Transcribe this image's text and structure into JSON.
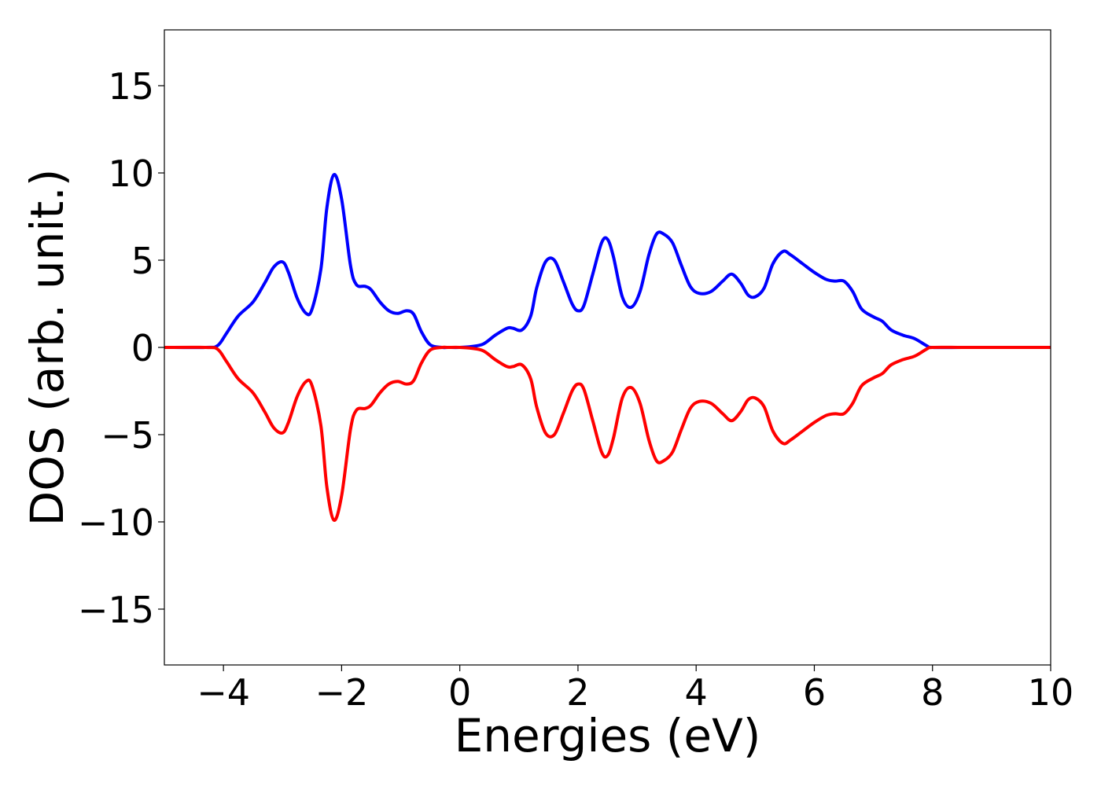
{
  "chart_data": {
    "type": "line",
    "title": "",
    "xlabel": "Energies (eV)",
    "ylabel": "DOS (arb. unit.)",
    "xlim": [
      -5,
      10
    ],
    "ylim": [
      -18.2,
      18.2
    ],
    "xticks": [
      -4,
      -2,
      0,
      2,
      4,
      6,
      8,
      10
    ],
    "xtick_labels": [
      "−4",
      "−2",
      "0",
      "2",
      "4",
      "6",
      "8",
      "10"
    ],
    "yticks": [
      15,
      10,
      5,
      0,
      -5,
      -10,
      -15
    ],
    "ytick_labels": [
      "15",
      "10",
      "5",
      "0",
      "−5",
      "−10",
      "−15"
    ],
    "grid": false,
    "legend": "none",
    "series": [
      {
        "color": "#0000ff",
        "x": [
          -5.0,
          -4.3,
          -4.1,
          -3.95,
          -3.75,
          -3.5,
          -3.3,
          -3.15,
          -3.0,
          -2.9,
          -2.75,
          -2.6,
          -2.5,
          -2.35,
          -2.25,
          -2.13,
          -2.0,
          -1.85,
          -1.75,
          -1.6,
          -1.5,
          -1.35,
          -1.2,
          -1.05,
          -0.9,
          -0.78,
          -0.65,
          -0.5,
          -0.3,
          -0.2,
          0.0,
          0.2,
          0.4,
          0.6,
          0.8,
          0.9,
          1.05,
          1.2,
          1.3,
          1.45,
          1.6,
          1.75,
          1.9,
          2.0,
          2.1,
          2.25,
          2.4,
          2.5,
          2.6,
          2.75,
          2.9,
          3.05,
          3.2,
          3.33,
          3.45,
          3.6,
          3.75,
          3.9,
          4.05,
          4.25,
          4.45,
          4.6,
          4.75,
          4.88,
          5.0,
          5.15,
          5.3,
          5.47,
          5.6,
          5.8,
          6.0,
          6.2,
          6.35,
          6.5,
          6.65,
          6.8,
          7.0,
          7.15,
          7.3,
          7.5,
          7.7,
          7.9,
          8.0,
          8.5,
          9.0,
          10.0
        ],
        "y": [
          0,
          0,
          0.1,
          0.8,
          1.8,
          2.6,
          3.7,
          4.6,
          4.9,
          4.3,
          2.8,
          1.95,
          2.2,
          4.5,
          8.0,
          9.9,
          8.5,
          4.7,
          3.6,
          3.5,
          3.3,
          2.6,
          2.1,
          1.95,
          2.1,
          1.9,
          0.9,
          0.15,
          0.0,
          0,
          0,
          0.05,
          0.2,
          0.7,
          1.1,
          1.1,
          1.0,
          1.8,
          3.4,
          4.9,
          5.0,
          3.8,
          2.5,
          2.1,
          2.4,
          4.2,
          6.0,
          6.2,
          5.2,
          2.9,
          2.3,
          3.2,
          5.3,
          6.5,
          6.5,
          6.0,
          4.7,
          3.5,
          3.1,
          3.2,
          3.8,
          4.2,
          3.7,
          3.0,
          2.9,
          3.4,
          4.8,
          5.5,
          5.3,
          4.8,
          4.3,
          3.9,
          3.8,
          3.8,
          3.2,
          2.2,
          1.75,
          1.5,
          1.0,
          0.7,
          0.5,
          0.1,
          0,
          0,
          0,
          0
        ]
      },
      {
        "color": "#ff0000",
        "x": [
          -5.0,
          -4.3,
          -4.1,
          -3.95,
          -3.75,
          -3.5,
          -3.3,
          -3.15,
          -3.0,
          -2.9,
          -2.75,
          -2.6,
          -2.5,
          -2.35,
          -2.25,
          -2.13,
          -2.0,
          -1.85,
          -1.75,
          -1.6,
          -1.5,
          -1.35,
          -1.2,
          -1.05,
          -0.9,
          -0.78,
          -0.65,
          -0.5,
          -0.3,
          -0.2,
          0.0,
          0.2,
          0.4,
          0.6,
          0.8,
          0.9,
          1.05,
          1.2,
          1.3,
          1.45,
          1.6,
          1.75,
          1.9,
          2.0,
          2.1,
          2.25,
          2.4,
          2.5,
          2.6,
          2.75,
          2.9,
          3.05,
          3.2,
          3.33,
          3.45,
          3.6,
          3.75,
          3.9,
          4.05,
          4.25,
          4.45,
          4.6,
          4.75,
          4.88,
          5.0,
          5.15,
          5.3,
          5.47,
          5.6,
          5.8,
          6.0,
          6.2,
          6.35,
          6.5,
          6.65,
          6.8,
          7.0,
          7.15,
          7.3,
          7.5,
          7.7,
          7.9,
          8.0,
          8.5,
          9.0,
          10.0
        ],
        "y": [
          0,
          0,
          -0.1,
          -0.8,
          -1.8,
          -2.6,
          -3.7,
          -4.6,
          -4.9,
          -4.3,
          -2.8,
          -1.95,
          -2.2,
          -4.5,
          -8.0,
          -9.9,
          -8.5,
          -4.7,
          -3.6,
          -3.5,
          -3.3,
          -2.6,
          -2.1,
          -1.95,
          -2.1,
          -1.9,
          -0.9,
          -0.15,
          0.0,
          0,
          0,
          -0.05,
          -0.2,
          -0.7,
          -1.1,
          -1.1,
          -1.0,
          -1.8,
          -3.4,
          -4.9,
          -5.0,
          -3.8,
          -2.5,
          -2.1,
          -2.4,
          -4.2,
          -6.0,
          -6.2,
          -5.2,
          -2.9,
          -2.3,
          -3.2,
          -5.3,
          -6.5,
          -6.5,
          -6.0,
          -4.7,
          -3.5,
          -3.1,
          -3.2,
          -3.8,
          -4.2,
          -3.7,
          -3.0,
          -2.9,
          -3.4,
          -4.8,
          -5.5,
          -5.3,
          -4.8,
          -4.3,
          -3.9,
          -3.8,
          -3.8,
          -3.2,
          -2.2,
          -1.75,
          -1.5,
          -1.0,
          -0.7,
          -0.5,
          -0.1,
          0,
          0,
          0,
          0
        ]
      }
    ]
  }
}
